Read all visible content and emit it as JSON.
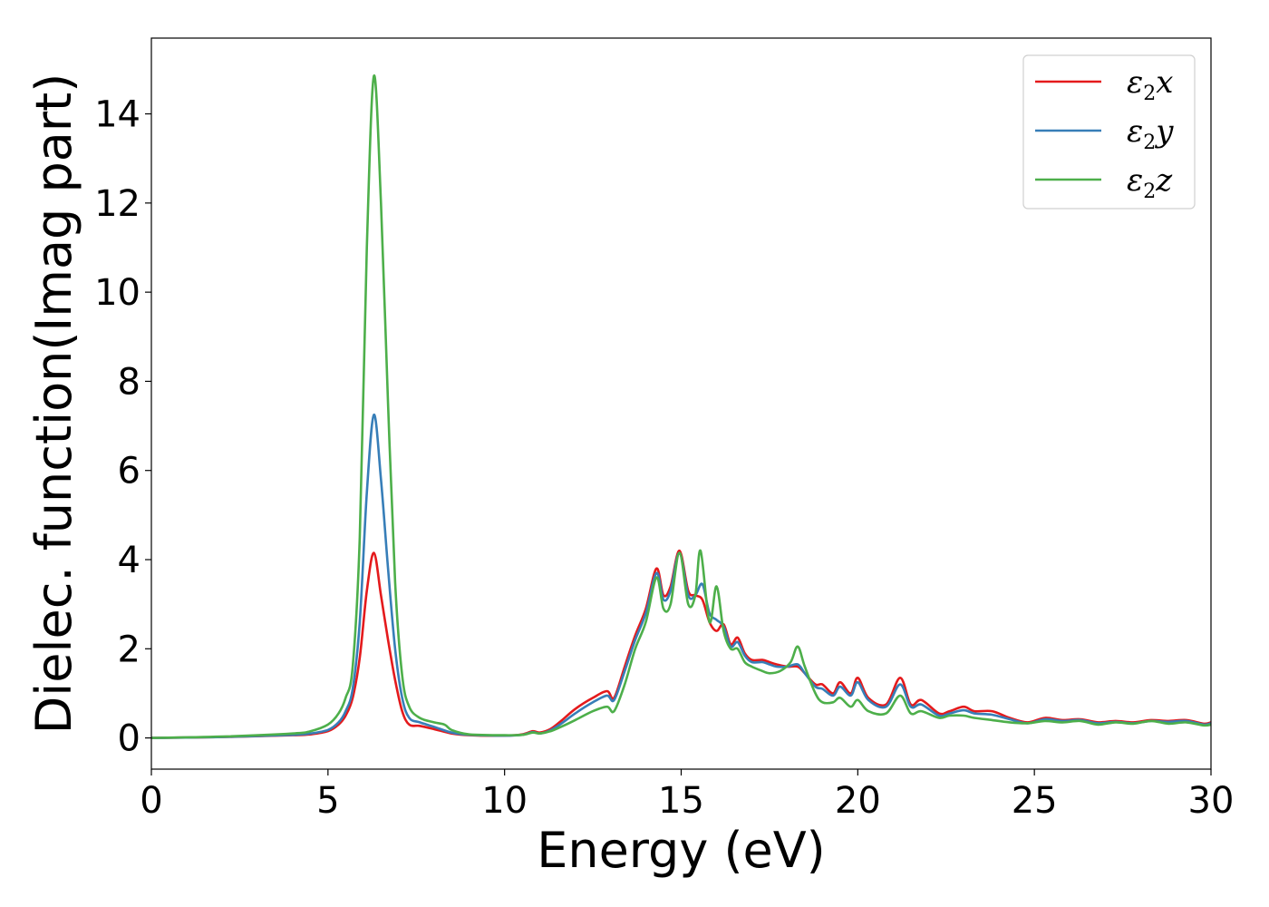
{
  "chart_data": {
    "type": "line",
    "title": "",
    "xlabel": "Energy (eV)",
    "ylabel": "Dielec. function(Imag part)",
    "xlim": [
      0,
      30
    ],
    "ylim": [
      -0.7,
      15.7
    ],
    "xticks": [
      0,
      5,
      10,
      15,
      20,
      25,
      30
    ],
    "yticks": [
      0,
      2,
      4,
      6,
      8,
      10,
      12,
      14
    ],
    "grid": false,
    "legend_position": "top-right",
    "series": [
      {
        "name_symbol": "ε",
        "name_sub": "2",
        "name_var": "x",
        "color": "#e41a1c",
        "x": [
          0,
          2,
          4,
          4.5,
          5,
          5.3,
          5.5,
          5.7,
          5.9,
          6.1,
          6.3,
          6.5,
          6.7,
          6.9,
          7.1,
          7.3,
          7.6,
          8,
          8.5,
          9,
          10,
          10.5,
          10.8,
          11,
          11.3,
          11.6,
          12,
          12.5,
          12.9,
          13.1,
          13.4,
          13.7,
          14,
          14.3,
          14.5,
          14.7,
          14.95,
          15.2,
          15.4,
          15.6,
          15.8,
          16,
          16.2,
          16.4,
          16.6,
          16.8,
          17,
          17.3,
          17.5,
          17.7,
          18,
          18.3,
          18.5,
          18.8,
          19,
          19.3,
          19.5,
          19.8,
          20,
          20.3,
          20.8,
          21.2,
          21.5,
          21.8,
          22.3,
          22.6,
          23,
          23.3,
          23.8,
          24.3,
          24.8,
          25.3,
          25.8,
          26.3,
          26.8,
          27.3,
          27.8,
          28.3,
          28.8,
          29.3,
          29.8,
          30
        ],
        "y": [
          0,
          0.02,
          0.06,
          0.08,
          0.15,
          0.3,
          0.5,
          0.9,
          1.8,
          3.3,
          4.15,
          3.2,
          2.2,
          1.3,
          0.6,
          0.3,
          0.27,
          0.2,
          0.1,
          0.06,
          0.05,
          0.08,
          0.15,
          0.12,
          0.2,
          0.38,
          0.65,
          0.9,
          1.05,
          0.9,
          1.6,
          2.3,
          2.9,
          3.8,
          3.2,
          3.4,
          4.2,
          3.3,
          3.2,
          3.1,
          2.6,
          2.4,
          2.55,
          2.1,
          2.25,
          1.9,
          1.75,
          1.75,
          1.7,
          1.65,
          1.6,
          1.6,
          1.45,
          1.2,
          1.2,
          1.0,
          1.25,
          1.0,
          1.35,
          0.9,
          0.75,
          1.35,
          0.75,
          0.85,
          0.55,
          0.6,
          0.7,
          0.6,
          0.6,
          0.45,
          0.35,
          0.45,
          0.4,
          0.42,
          0.35,
          0.38,
          0.35,
          0.4,
          0.38,
          0.4,
          0.32,
          0.35
        ]
      },
      {
        "name_symbol": "ε",
        "name_sub": "2",
        "name_var": "y",
        "color": "#377eb8",
        "x": [
          0,
          2,
          4,
          4.5,
          5,
          5.3,
          5.5,
          5.7,
          5.9,
          6.1,
          6.3,
          6.5,
          6.7,
          6.9,
          7.1,
          7.3,
          7.6,
          8,
          8.5,
          9,
          10,
          10.5,
          10.8,
          11,
          11.3,
          11.6,
          12,
          12.5,
          12.9,
          13.1,
          13.4,
          13.7,
          14,
          14.3,
          14.5,
          14.7,
          14.95,
          15.2,
          15.4,
          15.6,
          15.8,
          16,
          16.2,
          16.4,
          16.6,
          16.8,
          17,
          17.3,
          17.5,
          17.7,
          18,
          18.3,
          18.5,
          18.8,
          19,
          19.3,
          19.5,
          19.8,
          20,
          20.3,
          20.8,
          21.2,
          21.5,
          21.8,
          22.3,
          22.6,
          23,
          23.3,
          23.8,
          24.3,
          24.8,
          25.3,
          25.8,
          26.3,
          26.8,
          27.3,
          27.8,
          28.3,
          28.8,
          29.3,
          29.8,
          30
        ],
        "y": [
          0,
          0.02,
          0.07,
          0.1,
          0.18,
          0.35,
          0.6,
          1.1,
          2.6,
          5.5,
          7.25,
          5.8,
          3.8,
          2.0,
          0.9,
          0.45,
          0.35,
          0.25,
          0.12,
          0.07,
          0.05,
          0.07,
          0.13,
          0.1,
          0.17,
          0.32,
          0.55,
          0.8,
          0.95,
          0.85,
          1.5,
          2.2,
          2.8,
          3.7,
          3.1,
          3.3,
          4.15,
          3.2,
          3.2,
          3.45,
          2.8,
          2.65,
          2.5,
          2.05,
          2.15,
          1.85,
          1.7,
          1.7,
          1.65,
          1.6,
          1.6,
          1.65,
          1.45,
          1.15,
          1.1,
          0.95,
          1.15,
          0.95,
          1.25,
          0.85,
          0.7,
          1.2,
          0.7,
          0.75,
          0.5,
          0.55,
          0.62,
          0.55,
          0.52,
          0.42,
          0.33,
          0.42,
          0.38,
          0.4,
          0.33,
          0.36,
          0.33,
          0.38,
          0.36,
          0.38,
          0.3,
          0.33
        ]
      },
      {
        "name_symbol": "ε",
        "name_sub": "2",
        "name_var": "z",
        "color": "#4daf4a",
        "x": [
          0,
          2,
          4,
          4.5,
          5,
          5.3,
          5.5,
          5.7,
          5.9,
          6.1,
          6.3,
          6.5,
          6.7,
          6.9,
          7.1,
          7.3,
          7.6,
          8,
          8.3,
          8.5,
          9,
          10,
          10.5,
          10.8,
          11,
          11.3,
          11.6,
          12,
          12.5,
          12.9,
          13.1,
          13.4,
          13.7,
          14,
          14.3,
          14.5,
          14.7,
          14.95,
          15.2,
          15.4,
          15.55,
          15.8,
          16,
          16.2,
          16.4,
          16.6,
          16.8,
          17,
          17.3,
          17.5,
          17.8,
          18.1,
          18.3,
          18.5,
          18.8,
          19,
          19.3,
          19.5,
          19.8,
          20,
          20.3,
          20.8,
          21.2,
          21.5,
          21.8,
          22.3,
          22.6,
          23,
          23.3,
          23.8,
          24.3,
          24.8,
          25.3,
          25.8,
          26.3,
          26.8,
          27.3,
          27.8,
          28.3,
          28.8,
          29.3,
          29.8,
          30
        ],
        "y": [
          0,
          0.03,
          0.1,
          0.15,
          0.3,
          0.55,
          0.9,
          1.6,
          4.5,
          11.0,
          14.85,
          12.0,
          7.5,
          3.5,
          1.4,
          0.7,
          0.45,
          0.35,
          0.3,
          0.18,
          0.08,
          0.06,
          0.07,
          0.12,
          0.1,
          0.15,
          0.25,
          0.4,
          0.6,
          0.7,
          0.6,
          1.2,
          2.0,
          2.6,
          3.6,
          2.9,
          3.0,
          4.15,
          3.0,
          3.2,
          4.2,
          2.6,
          3.4,
          2.4,
          2.0,
          2.0,
          1.7,
          1.6,
          1.5,
          1.45,
          1.5,
          1.7,
          2.05,
          1.6,
          1.0,
          0.8,
          0.8,
          0.9,
          0.7,
          0.85,
          0.6,
          0.55,
          0.95,
          0.55,
          0.6,
          0.45,
          0.5,
          0.5,
          0.45,
          0.4,
          0.35,
          0.33,
          0.38,
          0.35,
          0.38,
          0.3,
          0.35,
          0.32,
          0.38,
          0.32,
          0.35,
          0.28,
          0.3
        ]
      }
    ]
  }
}
